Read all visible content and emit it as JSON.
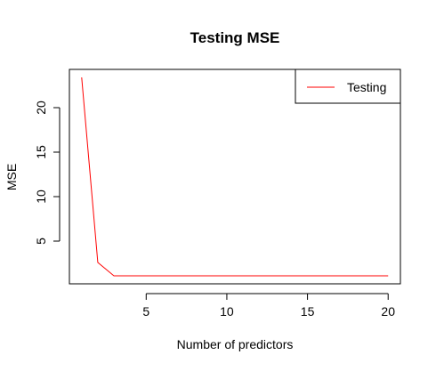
{
  "chart_data": {
    "type": "line",
    "title": "Testing MSE",
    "xlabel": "Number of predictors",
    "ylabel": "MSE",
    "xlim": [
      0.24,
      20.76
    ],
    "ylim": [
      0.2,
      24.3
    ],
    "x_ticks": [
      5,
      10,
      15,
      20
    ],
    "y_ticks": [
      5,
      10,
      15,
      20
    ],
    "grid": false,
    "legend": {
      "position": "top-right",
      "entries": [
        "Testing"
      ]
    },
    "series": [
      {
        "name": "Testing",
        "color": "#ff0000",
        "x": [
          1,
          2,
          3,
          4,
          5,
          6,
          7,
          8,
          9,
          10,
          11,
          12,
          13,
          14,
          15,
          16,
          17,
          18,
          19,
          20
        ],
        "y": [
          23.4,
          2.6,
          1.1,
          1.1,
          1.1,
          1.1,
          1.1,
          1.1,
          1.1,
          1.1,
          1.1,
          1.1,
          1.1,
          1.1,
          1.1,
          1.1,
          1.1,
          1.1,
          1.1,
          1.1
        ]
      }
    ]
  }
}
